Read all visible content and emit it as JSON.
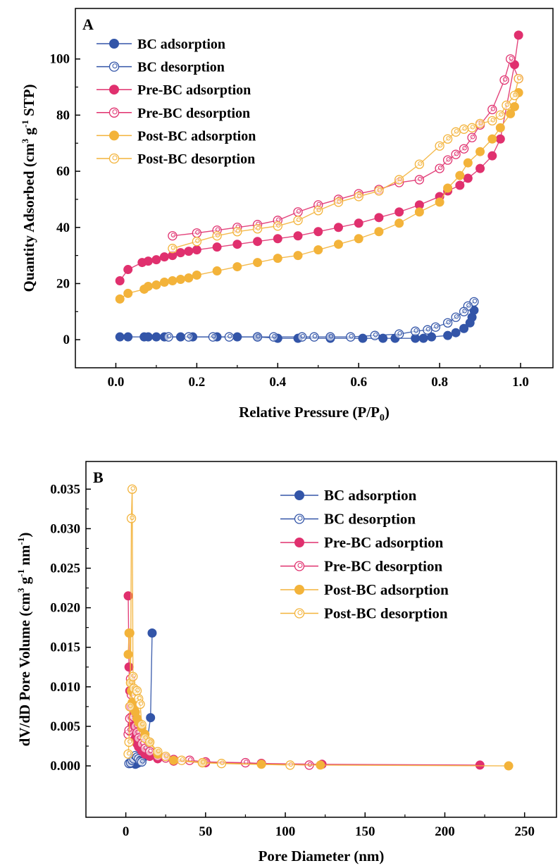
{
  "colors": {
    "bc": "#3355a8",
    "pre": "#e0306e",
    "post": "#f3b33a",
    "axis": "#000000"
  },
  "chart_data": [
    {
      "type": "scatter",
      "panel_label": "A",
      "xlabel": "Relative Pressure (P/P",
      "xlabel_sub": "0",
      "xlabel_end": ")",
      "ylabel": "Quantity Adsorbed (cm",
      "ylabel_sup1": "3",
      "ylabel_mid": " g",
      "ylabel_sup2": "-1",
      "ylabel_end": " STP)",
      "xlim": [
        -0.1,
        1.08
      ],
      "ylim": [
        -10,
        118
      ],
      "xticks": [
        "0.0",
        "0.2",
        "0.4",
        "0.6",
        "0.8",
        "1.0"
      ],
      "xtick_values": [
        0.0,
        0.2,
        0.4,
        0.6,
        0.8,
        1.0
      ],
      "yticks": [
        "0",
        "20",
        "40",
        "60",
        "80",
        "100"
      ],
      "ytick_values": [
        0,
        20,
        40,
        60,
        80,
        100
      ],
      "legend_position": "top-left",
      "series": [
        {
          "name": "BC adsorption",
          "color_key": "bc",
          "marker": "filled",
          "x": [
            0.01,
            0.03,
            0.07,
            0.08,
            0.1,
            0.12,
            0.16,
            0.19,
            0.25,
            0.3,
            0.35,
            0.4,
            0.45,
            0.53,
            0.61,
            0.66,
            0.69,
            0.74,
            0.76,
            0.78,
            0.82,
            0.84,
            0.86,
            0.875,
            0.88,
            0.885
          ],
          "y": [
            1,
            1,
            1,
            1,
            1,
            1,
            1,
            1,
            1,
            1,
            1,
            0.5,
            0.5,
            0.5,
            0.5,
            0.5,
            0.5,
            0.5,
            0.5,
            1,
            1.5,
            2.5,
            4,
            6,
            8,
            10.5
          ]
        },
        {
          "name": "BC desorption",
          "color_key": "bc",
          "marker": "open",
          "x": [
            0.885,
            0.87,
            0.86,
            0.84,
            0.82,
            0.79,
            0.77,
            0.74,
            0.7,
            0.64,
            0.58,
            0.53,
            0.49,
            0.46,
            0.39,
            0.35,
            0.28,
            0.24,
            0.18,
            0.13
          ],
          "y": [
            13.5,
            12,
            10,
            8,
            6,
            4.5,
            3.5,
            3,
            2,
            1.5,
            1,
            1,
            1,
            1,
            1,
            1,
            1,
            1,
            1,
            1
          ]
        },
        {
          "name": "Pre-BC adsorption",
          "color_key": "pre",
          "marker": "filled",
          "x": [
            0.01,
            0.03,
            0.065,
            0.08,
            0.1,
            0.12,
            0.14,
            0.16,
            0.18,
            0.2,
            0.25,
            0.3,
            0.35,
            0.4,
            0.45,
            0.5,
            0.55,
            0.6,
            0.65,
            0.7,
            0.75,
            0.8,
            0.82,
            0.85,
            0.87,
            0.9,
            0.93,
            0.95,
            0.985,
            0.995
          ],
          "y": [
            21,
            25,
            27.5,
            28,
            28.5,
            29.5,
            30,
            31,
            31.5,
            32,
            33,
            34,
            35,
            36,
            37,
            38.5,
            40,
            41.5,
            43.5,
            45.5,
            48,
            51,
            53,
            55,
            57.5,
            61,
            65.5,
            71.5,
            98,
            108.5
          ]
        },
        {
          "name": "Pre-BC desorption",
          "color_key": "pre",
          "marker": "open",
          "x": [
            0.995,
            0.975,
            0.96,
            0.93,
            0.9,
            0.88,
            0.86,
            0.84,
            0.82,
            0.8,
            0.75,
            0.7,
            0.65,
            0.6,
            0.55,
            0.5,
            0.45,
            0.4,
            0.35,
            0.3,
            0.25,
            0.2,
            0.14
          ],
          "y": [
            93,
            100,
            92.5,
            82,
            76.5,
            72,
            68,
            66,
            64,
            61,
            57,
            56,
            53.5,
            52,
            50,
            48,
            45.5,
            42.5,
            41,
            40,
            39,
            38,
            37
          ]
        },
        {
          "name": "Post-BC adsorption",
          "color_key": "post",
          "marker": "filled",
          "x": [
            0.01,
            0.03,
            0.07,
            0.08,
            0.1,
            0.12,
            0.14,
            0.16,
            0.18,
            0.2,
            0.25,
            0.3,
            0.35,
            0.4,
            0.45,
            0.5,
            0.55,
            0.6,
            0.65,
            0.7,
            0.75,
            0.8,
            0.82,
            0.85,
            0.87,
            0.9,
            0.93,
            0.95,
            0.975,
            0.985,
            0.995
          ],
          "y": [
            14.5,
            16.5,
            18,
            19,
            19.5,
            20.5,
            21,
            21.5,
            22,
            23,
            24.5,
            26,
            27.5,
            29,
            30,
            32,
            34,
            36,
            38.5,
            41.5,
            45.5,
            49,
            54,
            58.5,
            63,
            67,
            71.5,
            75.5,
            80.5,
            83,
            88
          ]
        },
        {
          "name": "Post-BC desorption",
          "color_key": "post",
          "marker": "open",
          "x": [
            0.995,
            0.985,
            0.965,
            0.95,
            0.93,
            0.9,
            0.88,
            0.86,
            0.84,
            0.82,
            0.8,
            0.75,
            0.7,
            0.65,
            0.6,
            0.55,
            0.5,
            0.45,
            0.4,
            0.35,
            0.3,
            0.25,
            0.2,
            0.14
          ],
          "y": [
            93,
            87,
            83.5,
            80,
            78,
            77,
            75.5,
            75,
            74,
            71.5,
            69,
            62.5,
            57,
            53,
            51,
            49,
            46,
            42.5,
            40.5,
            39.5,
            38.5,
            37,
            35,
            32.5
          ]
        }
      ]
    },
    {
      "type": "scatter",
      "panel_label": "B",
      "xlabel": "Pore Diameter (nm)",
      "ylabel": "dV/dD Pore Volume (cm",
      "ylabel_sup1": "3",
      "ylabel_mid": " g",
      "ylabel_sup2": "-1",
      "ylabel_mid2": " nm",
      "ylabel_sup3": "-1",
      "ylabel_end": ")",
      "xlim": [
        -25,
        270
      ],
      "ylim": [
        -0.0065,
        0.0385
      ],
      "xticks": [
        "0",
        "50",
        "100",
        "150",
        "200",
        "250"
      ],
      "xtick_values": [
        0,
        50,
        100,
        150,
        200,
        250
      ],
      "yticks": [
        "0.000",
        "0.005",
        "0.010",
        "0.015",
        "0.020",
        "0.025",
        "0.030",
        "0.035"
      ],
      "ytick_values": [
        0,
        0.005,
        0.01,
        0.015,
        0.02,
        0.025,
        0.03,
        0.035
      ],
      "legend_position": "top-right",
      "series": [
        {
          "name": "BC adsorption",
          "color_key": "bc",
          "marker": "filled",
          "x": [
            3,
            4,
            5,
            6,
            7,
            8,
            9,
            10,
            12,
            15.5,
            16.5
          ],
          "y": [
            0.0003,
            0.0005,
            0.0004,
            0.0002,
            0.0003,
            0.0004,
            0.0006,
            0.0008,
            0.0012,
            0.0061,
            0.0168
          ]
        },
        {
          "name": "BC desorption",
          "color_key": "bc",
          "marker": "open",
          "x": [
            2,
            3,
            4,
            5,
            6,
            7,
            8,
            9,
            10
          ],
          "y": [
            0.0003,
            0.0004,
            0.0007,
            0.0009,
            0.0013,
            0.0011,
            0.0009,
            0.0006,
            0.0005
          ]
        },
        {
          "name": "Pre-BC adsorption",
          "color_key": "pre",
          "marker": "filled",
          "x": [
            1.5,
            2,
            2.5,
            3,
            3.5,
            4,
            5,
            6,
            7,
            8,
            10,
            12,
            15,
            20,
            30,
            50,
            85,
            123,
            222
          ],
          "y": [
            0.0215,
            0.0125,
            0.0095,
            0.0075,
            0.0062,
            0.0052,
            0.0042,
            0.0035,
            0.0028,
            0.0024,
            0.0019,
            0.0015,
            0.0012,
            0.0009,
            0.0006,
            0.0004,
            0.0003,
            0.0002,
            0.0001
          ]
        },
        {
          "name": "Pre-BC desorption",
          "color_key": "pre",
          "marker": "open",
          "x": [
            1.5,
            2,
            2.5,
            3,
            3.5,
            4,
            5,
            6,
            7,
            8,
            10,
            12,
            15,
            20,
            25,
            30,
            40,
            50,
            75,
            85,
            115
          ],
          "y": [
            0.004,
            0.0045,
            0.006,
            0.011,
            0.009,
            0.0075,
            0.0062,
            0.005,
            0.0042,
            0.0035,
            0.0028,
            0.0022,
            0.0018,
            0.0012,
            0.001,
            0.0008,
            0.0007,
            0.0005,
            0.0004,
            0.0003,
            0.0001
          ]
        },
        {
          "name": "Post-BC adsorption",
          "color_key": "post",
          "marker": "filled",
          "x": [
            1.5,
            2,
            2.5,
            3,
            3.5,
            4,
            5,
            6,
            7,
            8,
            10,
            12,
            15,
            20,
            30,
            48,
            85,
            122,
            240
          ],
          "y": [
            0.0141,
            0.0168,
            0.0168,
            0.0105,
            0.0095,
            0.008,
            0.0072,
            0.0068,
            0.006,
            0.0055,
            0.0048,
            0.004,
            0.003,
            0.0015,
            0.0007,
            0.0004,
            0.0002,
            0.0001,
            0.0
          ]
        },
        {
          "name": "Post-BC desorption",
          "color_key": "post",
          "marker": "open",
          "x": [
            1.5,
            2,
            2.5,
            3,
            3.5,
            4,
            4.5,
            5,
            6,
            7,
            8,
            9,
            10,
            12,
            15,
            20,
            25,
            35,
            48,
            60,
            103
          ],
          "y": [
            0.0015,
            0.003,
            0.0075,
            0.0105,
            0.0313,
            0.035,
            0.0113,
            0.0098,
            0.009,
            0.0095,
            0.0085,
            0.0078,
            0.0052,
            0.0035,
            0.003,
            0.0018,
            0.0012,
            0.0007,
            0.0004,
            0.0003,
            0.0001
          ]
        }
      ]
    }
  ]
}
